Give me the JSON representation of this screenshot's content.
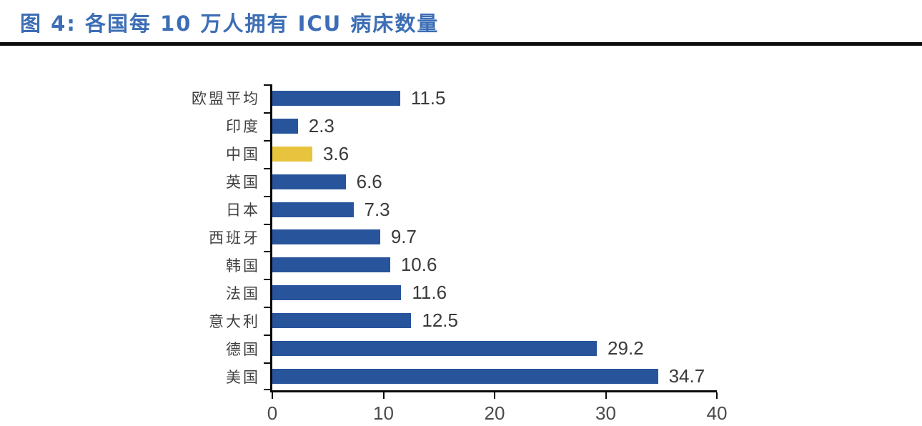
{
  "page": {
    "title": "图 4: 各国每 10 万人拥有 ICU 病床数量"
  },
  "colors": {
    "title_blue": "#3d6eb5",
    "rule_black": "#0b0b0b",
    "bar_blue": "#28549c",
    "bar_highlight_yellow": "#e8c43e",
    "value_label_gray": "#3a3a3a",
    "tick_label_gray": "#4a4a4a",
    "category_label_gray": "#404040"
  },
  "chart_data": {
    "type": "bar",
    "orientation": "horizontal",
    "title": "图 4: 各国每 10 万人拥有 ICU 病床数量",
    "categories": [
      "欧盟平均",
      "印度",
      "中国",
      "英国",
      "日本",
      "西班牙",
      "韩国",
      "法国",
      "意大利",
      "德国",
      "美国"
    ],
    "values": [
      11.5,
      2.3,
      3.6,
      6.6,
      7.3,
      9.7,
      10.6,
      11.6,
      12.5,
      29.2,
      34.7
    ],
    "value_labels": [
      "11.5",
      "2.3",
      "3.6",
      "6.6",
      "7.3",
      "9.7",
      "10.6",
      "11.6",
      "12.5",
      "29.2",
      "34.7"
    ],
    "highlight_category": "中国",
    "xlabel": "",
    "ylabel": "",
    "xlim": [
      0,
      40
    ],
    "x_ticks": [
      0,
      10,
      20,
      30,
      40
    ],
    "x_tick_labels": [
      "0",
      "10",
      "20",
      "30",
      "40"
    ],
    "grid": false,
    "legend": false
  }
}
